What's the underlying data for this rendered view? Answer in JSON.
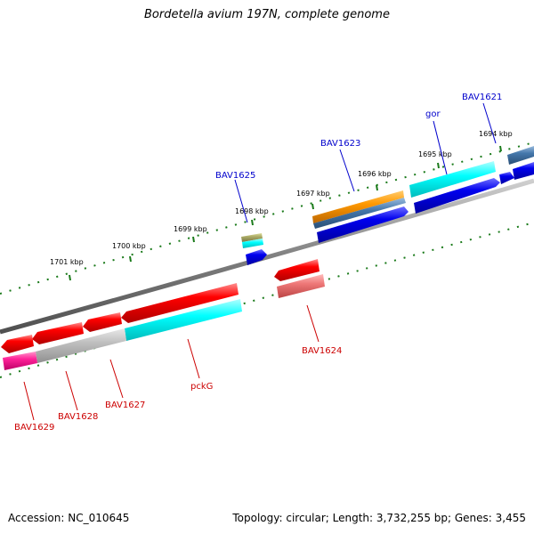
{
  "title": "Bordetella avium 197N, complete genome",
  "accession": "Accession: NC_010645",
  "topology": "Topology: circular; Length: 3,732,255 bp; Genes: 3,455",
  "ticks": [
    {
      "label": "1694 kbp"
    },
    {
      "label": "1695 kbp"
    },
    {
      "label": "1696 kbp"
    },
    {
      "label": "1697 kbp"
    },
    {
      "label": "1698 kbp"
    },
    {
      "label": "1699 kbp"
    },
    {
      "label": "1700 kbp"
    },
    {
      "label": "1701 kbp"
    }
  ],
  "genes_forward": [
    {
      "name": "BAV1621"
    },
    {
      "name": "gor"
    },
    {
      "name": "BAV1623"
    },
    {
      "name": "BAV1625"
    }
  ],
  "genes_reverse": [
    {
      "name": "BAV1624"
    },
    {
      "name": "pckG"
    },
    {
      "name": "BAV1627"
    },
    {
      "name": "BAV1628"
    },
    {
      "name": "BAV1629"
    }
  ],
  "colors": {
    "backbone": "#808080",
    "tick": "#1a7a1a",
    "cds_forward": "#0000ee",
    "cds_reverse": "#ee0000",
    "cyan": "#00eeee",
    "orange": "#ee8800",
    "steelblue": "#4477aa",
    "pink": "#ee2288",
    "grey": "#bbbbbb",
    "olive": "#aaaa66",
    "salmon": "#ee7777"
  }
}
